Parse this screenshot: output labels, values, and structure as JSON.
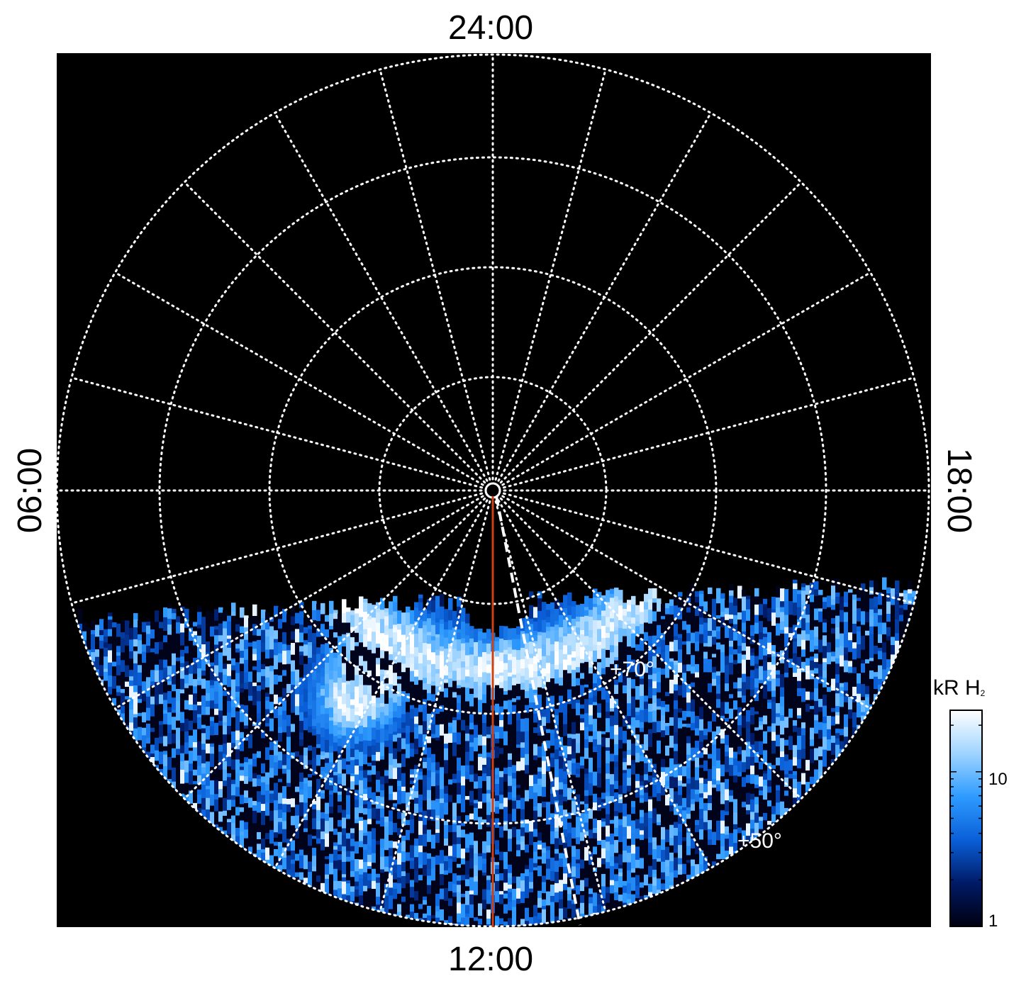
{
  "chart_data": {
    "type": "heatmap",
    "projection": "polar",
    "background_color": "#000000",
    "local_time_labels": {
      "top": "24:00",
      "bottom": "12:00",
      "left": "06:00",
      "right": "18:00"
    },
    "latitude_labels": [
      "+70°",
      "+50°"
    ],
    "grid": true,
    "grid_style": "dotted white",
    "colorbar": {
      "title": "kR H",
      "title_subscript": "2",
      "scale": "log",
      "ticks": [
        "10",
        "1"
      ],
      "range": [
        1,
        25
      ],
      "placement": "right",
      "colors": [
        "#000010",
        "#001a66",
        "#0a5fd8",
        "#2e9bff",
        "#9fd4ff",
        "#ffffff"
      ]
    },
    "overlays": {
      "red_line_color": "#d04010",
      "dashed_line_color": "#ffffff"
    }
  }
}
